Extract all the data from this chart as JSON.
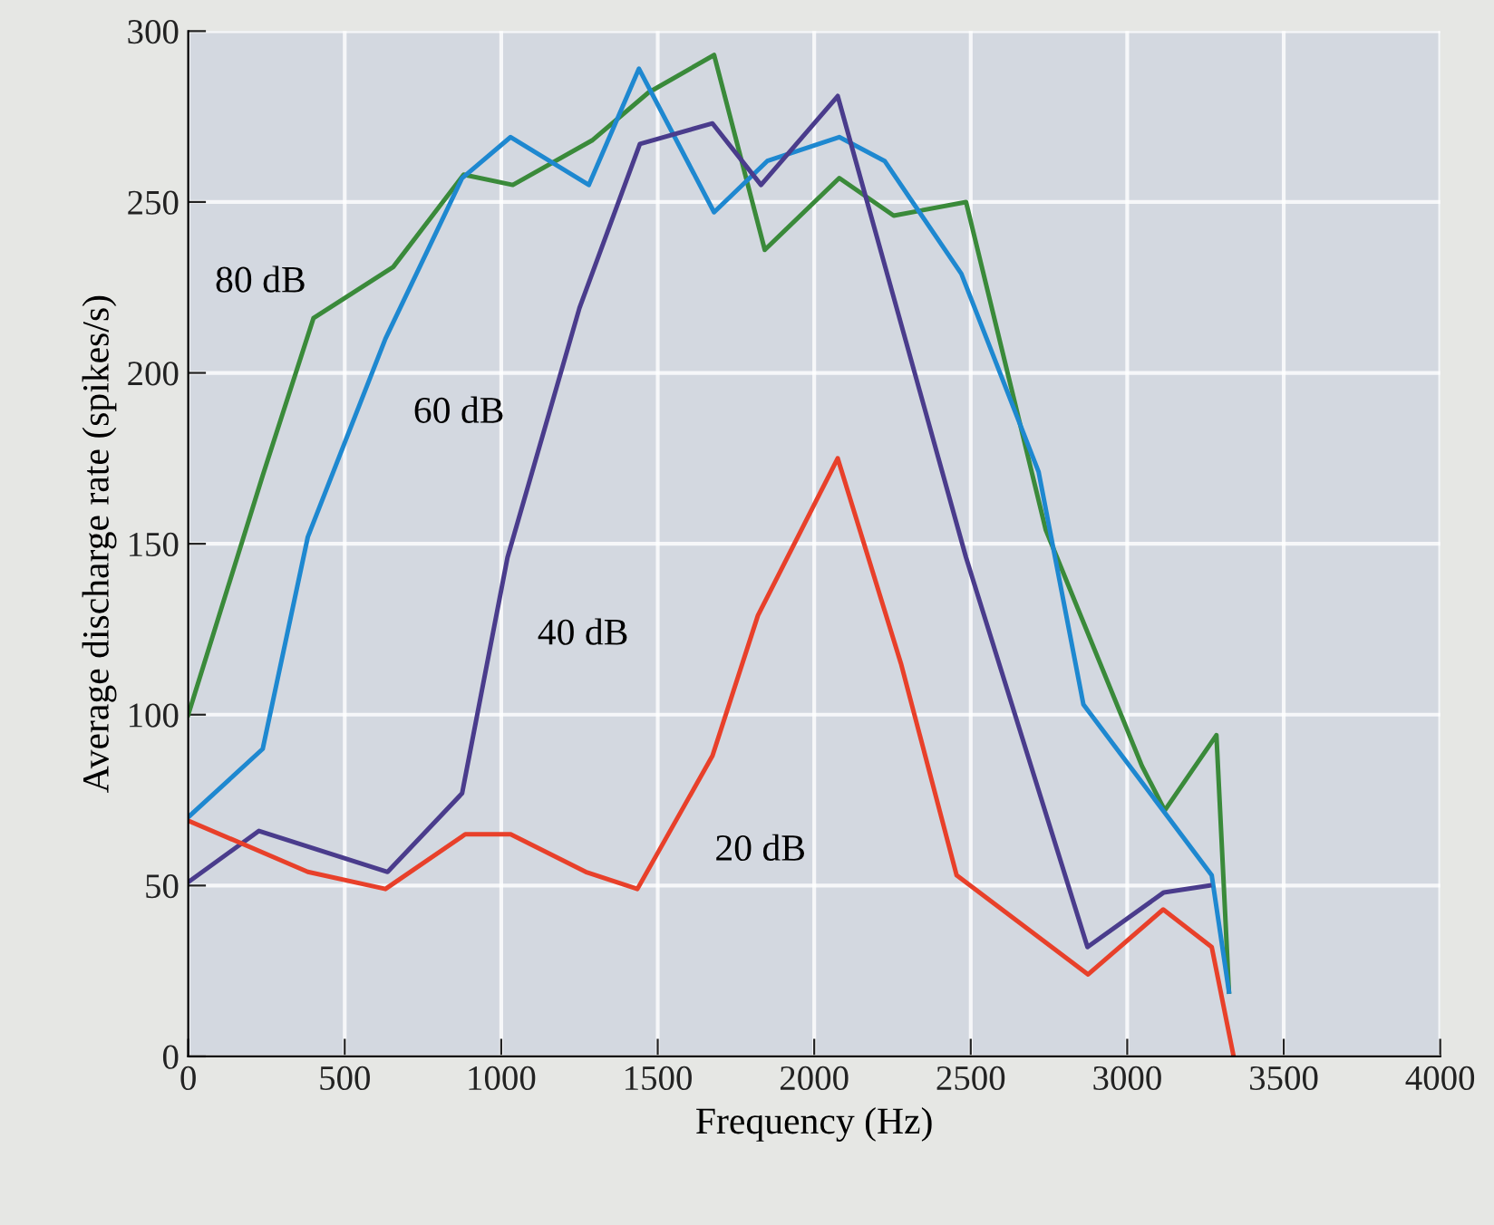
{
  "chart_data": {
    "type": "line",
    "xlabel": "Frequency (Hz)",
    "ylabel": "Average discharge rate (spikes/s)",
    "xlim": [
      0,
      4000
    ],
    "xticks": [
      0,
      500,
      1000,
      1500,
      2000,
      2500,
      3000,
      3500,
      4000
    ],
    "ylim": [
      0,
      300
    ],
    "yticks": [
      0,
      50,
      100,
      150,
      200,
      250,
      300
    ],
    "grid": true,
    "legend": false,
    "marker": "none",
    "line_style": "solid",
    "series": [
      {
        "name": "80 dB",
        "color": "#3a8a3a",
        "x": [
          0,
          238,
          400,
          655,
          880,
          1037,
          1290,
          1470,
          1680,
          1842,
          2080,
          2254,
          2485,
          2740,
          3047,
          3120,
          3285,
          3325
        ],
        "values": [
          100,
          170,
          216,
          231,
          258,
          255,
          268,
          282,
          293,
          236,
          257,
          246,
          250,
          154,
          85,
          72,
          94,
          19
        ]
      },
      {
        "name": "60 dB",
        "color": "#1e88d0",
        "x": [
          0,
          238,
          382,
          630,
          875,
          1030,
          1280,
          1440,
          1680,
          1850,
          2080,
          2225,
          2470,
          2717,
          2860,
          3270,
          3325
        ],
        "values": [
          70,
          90,
          152,
          210,
          257,
          269,
          255,
          289,
          247,
          262,
          269,
          262,
          229,
          171,
          103,
          53,
          19
        ]
      },
      {
        "name": "40 dB",
        "color": "#4a3c8c",
        "x": [
          0,
          226,
          637,
          875,
          1020,
          1250,
          1443,
          1675,
          1830,
          2075,
          2485,
          2873,
          3117,
          3262
        ],
        "values": [
          51,
          66,
          54,
          77,
          146,
          219,
          267,
          273,
          255,
          281,
          146,
          32,
          48,
          50
        ]
      },
      {
        "name": "20 dB",
        "color": "#e8402a",
        "x": [
          0,
          382,
          630,
          885,
          1030,
          1270,
          1435,
          1675,
          1820,
          2075,
          2277,
          2455,
          2875,
          3115,
          3270,
          3340
        ],
        "values": [
          69,
          54,
          49,
          65,
          65,
          54,
          49,
          88,
          129,
          175,
          115,
          53,
          24,
          43,
          32,
          0
        ]
      }
    ]
  }
}
